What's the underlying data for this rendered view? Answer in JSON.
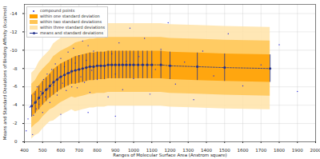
{
  "chart_data": {
    "type": "scatter",
    "xlabel": "Ranges of Molecular Surface Area (Anstrom square)",
    "ylabel": "Means and Standard Deviations of Binding Affinity (kcal/mol)",
    "xlim": [
      400,
      2000
    ],
    "xticks": [
      400,
      500,
      600,
      700,
      800,
      900,
      1000,
      1100,
      1200,
      1300,
      1400,
      1500,
      1600,
      1700,
      1800,
      1900,
      2000
    ],
    "ylim": [
      0,
      -15
    ],
    "yticks": [
      -14,
      -12,
      -10,
      -8,
      -6,
      -4,
      -2,
      0
    ],
    "grid": true,
    "legend": "upper left",
    "series": [
      {
        "name": "compound points",
        "type": "scatter",
        "color": "#3030d8",
        "marker": "dot",
        "x": [
          420,
          430,
          440,
          450,
          455,
          465,
          470,
          480,
          490,
          500,
          505,
          515,
          525,
          530,
          540,
          550,
          560,
          570,
          580,
          590,
          600,
          610,
          620,
          630,
          640,
          650,
          660,
          670,
          680,
          690,
          700,
          710,
          720,
          730,
          740,
          750,
          760,
          770,
          780,
          790,
          800,
          820,
          840,
          860,
          880,
          900,
          920,
          940,
          960,
          980,
          1000,
          1030,
          1060,
          1090,
          1120,
          1150,
          1190,
          1230,
          1280,
          1330,
          1380,
          1440,
          1520,
          1600,
          1700,
          1800,
          1900,
          410,
          445,
          600,
          750,
          900
        ],
        "values": [
          -2.5,
          -3.8,
          -4.5,
          -2.9,
          -5.2,
          -3.6,
          -6.0,
          -4.1,
          -5.5,
          -3.2,
          -6.8,
          -4.9,
          -7.4,
          -5.8,
          -4.3,
          -7.9,
          -6.2,
          -8.5,
          -5.1,
          -7.0,
          -9.1,
          -6.4,
          -8.2,
          -5.6,
          -9.8,
          -7.5,
          -6.0,
          -10.2,
          -8.6,
          -5.9,
          -9.4,
          -7.1,
          -11.0,
          -6.5,
          -8.9,
          -10.5,
          -5.4,
          -7.8,
          -9.9,
          -11.6,
          -6.8,
          -8.3,
          -12.1,
          -4.9,
          -9.6,
          -7.4,
          -10.8,
          -5.7,
          -8.8,
          -12.4,
          -6.9,
          -9.3,
          -11.3,
          -5.2,
          -7.9,
          -10.1,
          -13.0,
          -6.3,
          -8.7,
          -4.6,
          -9.9,
          -7.2,
          -11.8,
          -6.1,
          -8.4,
          -10.6,
          -5.5,
          -1.2,
          -0.8,
          -3.0,
          -3.2,
          -2.8
        ]
      },
      {
        "name": "within one standard deviation",
        "type": "band",
        "color": "#ffa000",
        "std_multiple": 1
      },
      {
        "name": "within two standard deviations",
        "type": "band",
        "color": "#ffc555",
        "std_multiple": 2
      },
      {
        "name": "within three standard deviations",
        "type": "band",
        "color": "#ffe3a8",
        "std_multiple": 3
      },
      {
        "name": "means and standard deviations",
        "type": "errorbar",
        "color": "#24328c",
        "marker": "dot",
        "x": [
          440,
          460,
          480,
          500,
          520,
          540,
          560,
          580,
          600,
          620,
          640,
          660,
          680,
          700,
          720,
          740,
          760,
          780,
          800,
          820,
          840,
          860,
          880,
          900,
          920,
          940,
          960,
          980,
          1000,
          1025,
          1050,
          1075,
          1100,
          1150,
          1200,
          1350,
          1500,
          1750
        ],
        "values": [
          -3.9,
          -4.3,
          -4.8,
          -5.3,
          -5.7,
          -6.1,
          -6.5,
          -6.8,
          -7.1,
          -7.3,
          -7.5,
          -7.7,
          -7.8,
          -7.9,
          -8.0,
          -8.1,
          -8.2,
          -8.2,
          -8.3,
          -8.3,
          -8.3,
          -8.4,
          -8.4,
          -8.4,
          -8.4,
          -8.4,
          -8.4,
          -8.4,
          -8.4,
          -8.4,
          -8.4,
          -8.4,
          -8.4,
          -8.4,
          -8.3,
          -8.2,
          -8.1,
          -8.0
        ],
        "errors": [
          1.2,
          1.2,
          1.3,
          1.3,
          1.3,
          1.3,
          1.4,
          1.4,
          1.4,
          1.4,
          1.4,
          1.4,
          1.5,
          1.5,
          1.5,
          1.5,
          1.5,
          1.5,
          1.5,
          1.5,
          1.5,
          1.5,
          1.5,
          1.5,
          1.5,
          1.5,
          1.5,
          1.5,
          1.5,
          1.5,
          1.5,
          1.5,
          1.5,
          1.5,
          1.5,
          1.5,
          1.5,
          1.5
        ]
      }
    ]
  }
}
